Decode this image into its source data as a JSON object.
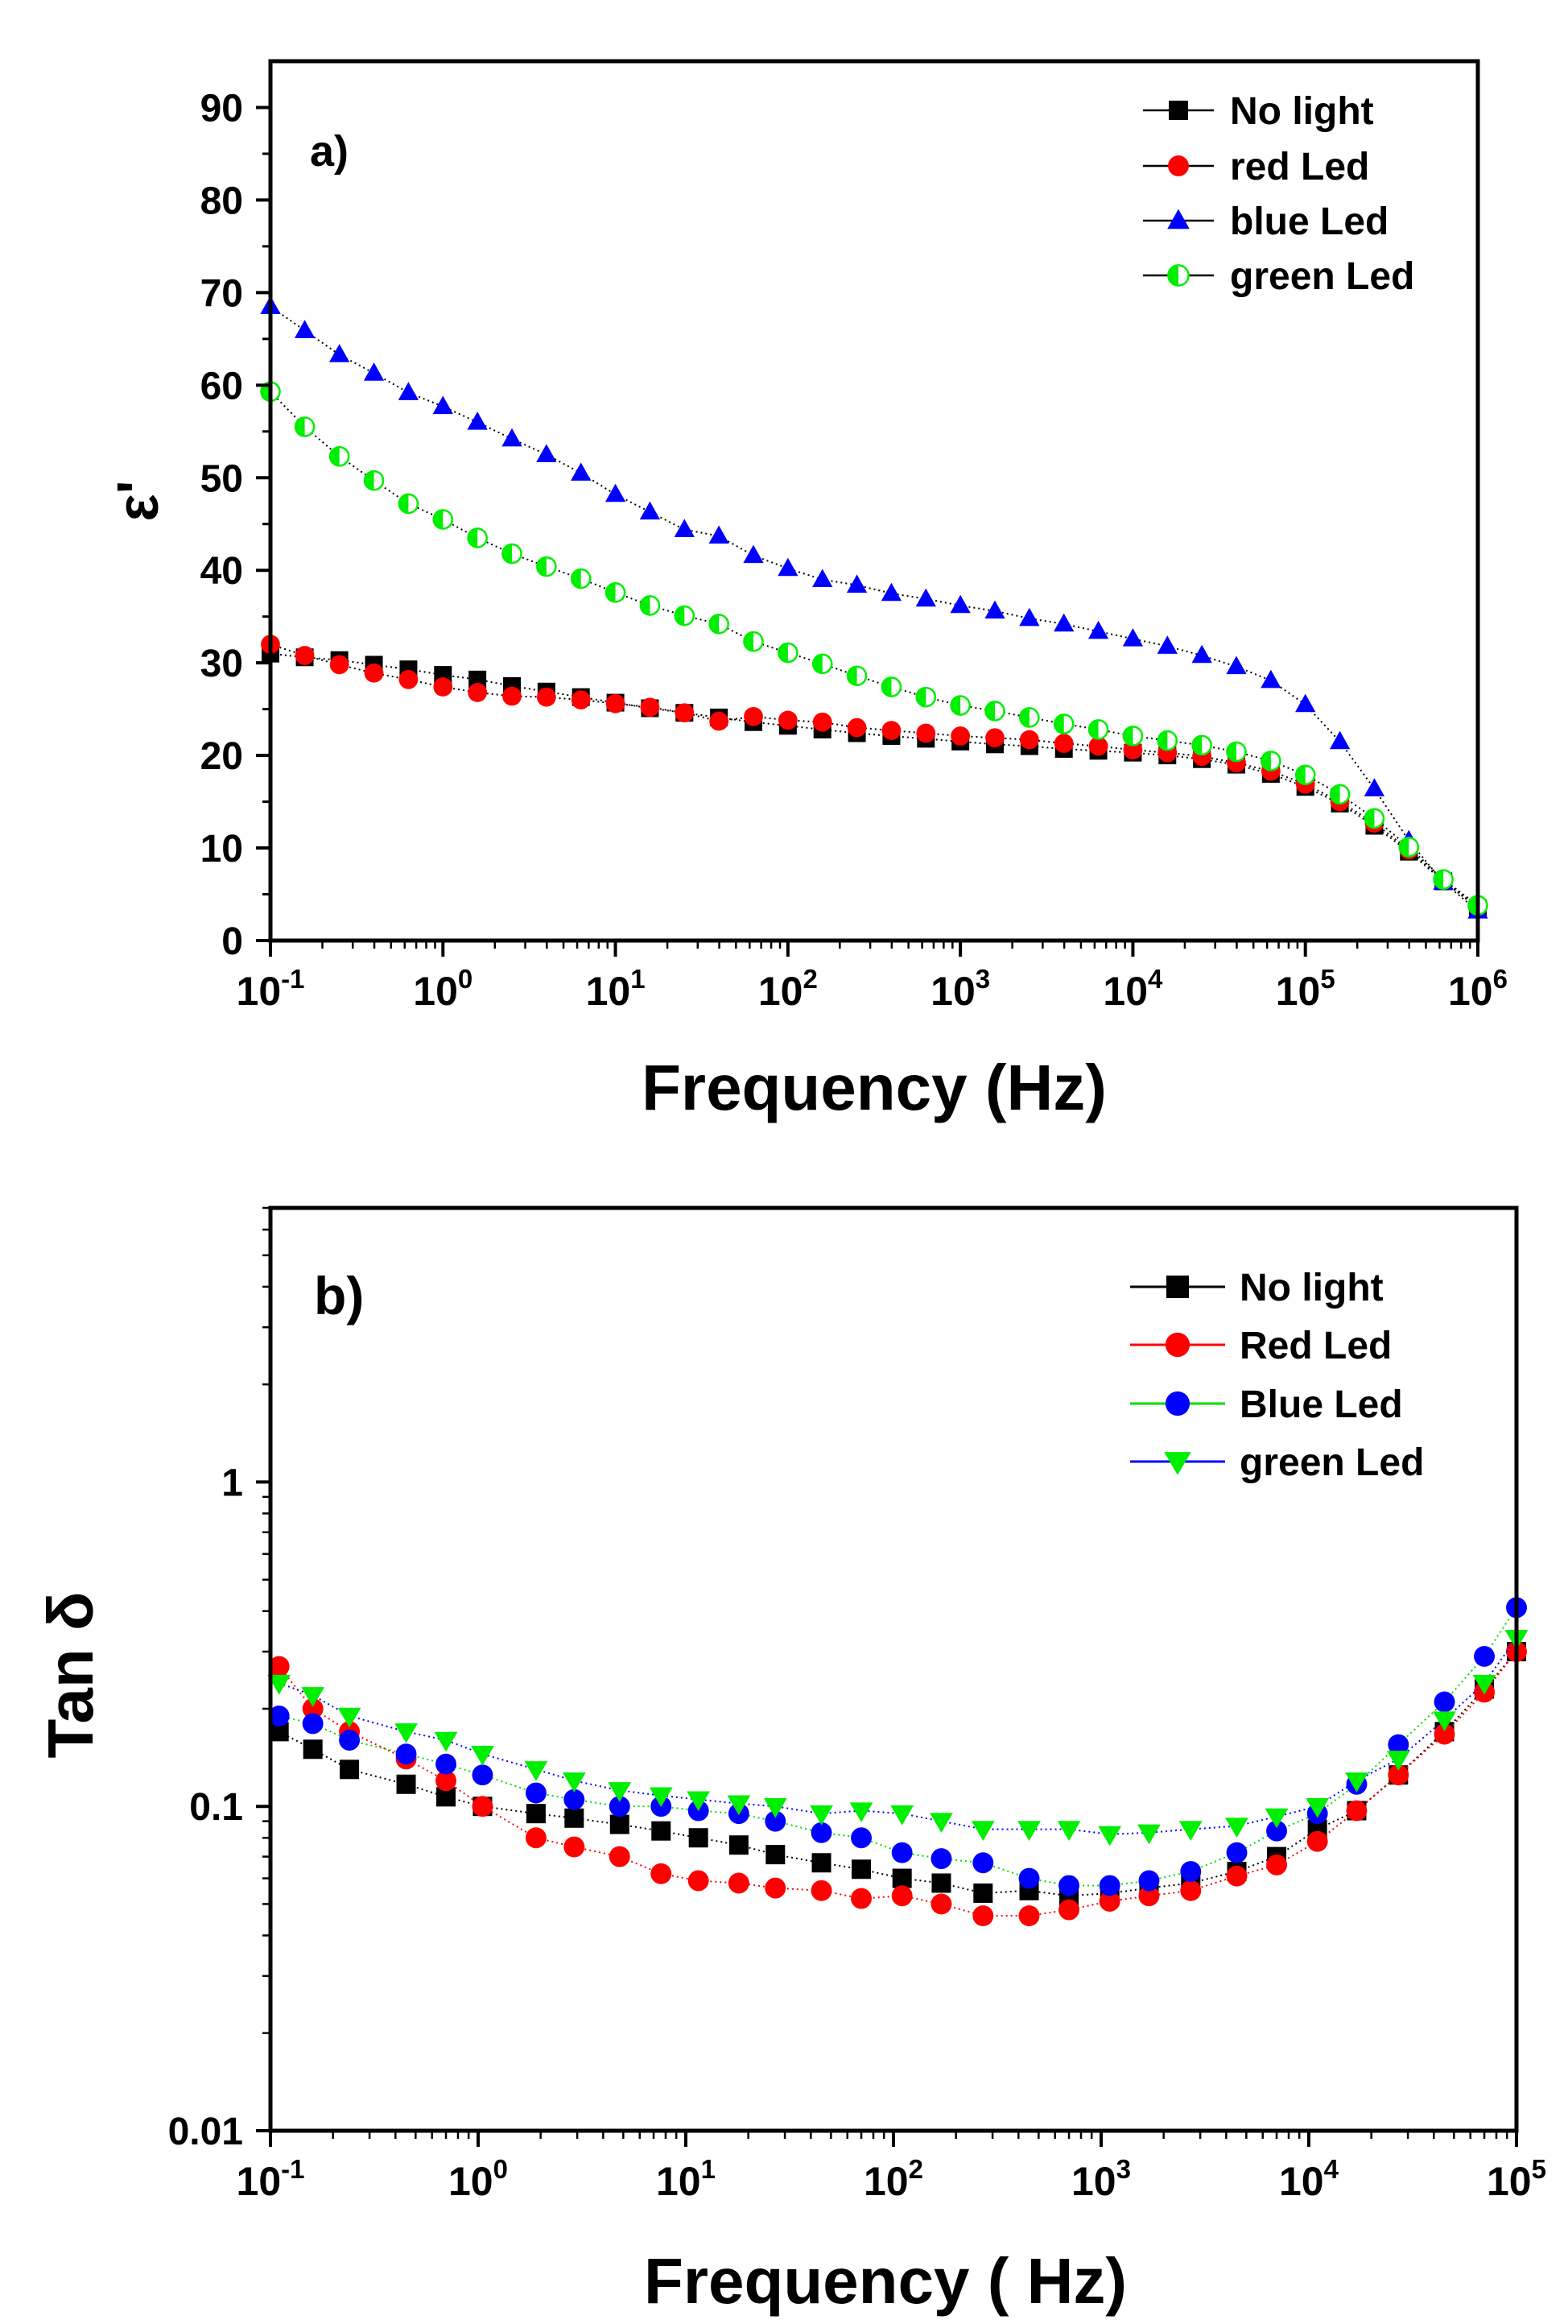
{
  "chart_data": [
    {
      "id": "panel_a",
      "type": "line",
      "panel_label": "a)",
      "xlabel": "Frequency (Hz)",
      "ylabel": "ε'",
      "xscale": "log",
      "yscale": "linear",
      "xlim": [
        0.1,
        1000000
      ],
      "ylim": [
        0,
        95
      ],
      "y_ticks": [
        0,
        10,
        20,
        30,
        40,
        50,
        60,
        70,
        80,
        90
      ],
      "x_decades": [
        -1,
        0,
        1,
        2,
        3,
        4,
        5,
        6
      ],
      "legend_position": "top-right",
      "series": [
        {
          "name": "No light",
          "color": "#000000",
          "marker": "square",
          "line_color": "#000000",
          "x": [
            0.1,
            0.158,
            0.251,
            0.398,
            0.631,
            1,
            1.585,
            2.512,
            3.981,
            6.31,
            10,
            15.85,
            25.12,
            39.81,
            63.1,
            100,
            158.5,
            251.2,
            398.1,
            631,
            1000,
            1585,
            2512,
            3981,
            6310,
            10000,
            15850,
            25120,
            39810,
            63100,
            100000,
            158500,
            251200,
            398100,
            631000,
            1000000
          ],
          "y": [
            31,
            30.6,
            30.3,
            29.8,
            29.3,
            28.7,
            28.2,
            27.5,
            26.9,
            26.3,
            25.7,
            25.1,
            24.6,
            24.1,
            23.6,
            23.2,
            22.8,
            22.4,
            22.1,
            21.8,
            21.5,
            21.2,
            21,
            20.7,
            20.5,
            20.3,
            20,
            19.6,
            19,
            18,
            16.6,
            14.8,
            12.4,
            9.6,
            6.4,
            3.5
          ]
        },
        {
          "name": "red Led",
          "color": "#ff0000",
          "marker": "circle",
          "line_color": "#000000",
          "x": [
            0.1,
            0.158,
            0.251,
            0.398,
            0.631,
            1,
            1.585,
            2.512,
            3.981,
            6.31,
            10,
            15.85,
            25.12,
            39.81,
            63.1,
            100,
            158.5,
            251.2,
            398.1,
            631,
            1000,
            1585,
            2512,
            3981,
            6310,
            10000,
            15850,
            25120,
            39810,
            63100,
            100000,
            158500,
            251200,
            398100,
            631000,
            1000000
          ],
          "y": [
            32,
            30.8,
            29.8,
            28.9,
            28.2,
            27.4,
            26.8,
            26.4,
            26.3,
            26,
            25.6,
            25.2,
            24.6,
            23.7,
            24.2,
            23.8,
            23.6,
            23,
            22.7,
            22.4,
            22.1,
            21.9,
            21.7,
            21.3,
            21,
            20.6,
            20.3,
            19.9,
            19.2,
            18.3,
            16.9,
            15,
            12.7,
            9.8,
            6.5,
            3.6
          ]
        },
        {
          "name": "blue Led",
          "color": "#0000ff",
          "marker": "triangle",
          "line_color": "#000000",
          "x": [
            0.1,
            0.158,
            0.251,
            0.398,
            0.631,
            1,
            1.585,
            2.512,
            3.981,
            6.31,
            10,
            15.85,
            25.12,
            39.81,
            63.1,
            100,
            158.5,
            251.2,
            398.1,
            631,
            1000,
            1585,
            2512,
            3981,
            6310,
            10000,
            15850,
            25120,
            39810,
            63100,
            100000,
            158500,
            251200,
            398100,
            631000,
            1000000
          ],
          "y": [
            68.5,
            65.9,
            63.3,
            61.3,
            59.2,
            57.7,
            56,
            54.2,
            52.5,
            50.5,
            48.2,
            46.3,
            44.4,
            43.7,
            41.6,
            40.2,
            39,
            38.4,
            37.5,
            36.9,
            36.2,
            35.6,
            34.8,
            34.2,
            33.4,
            32.6,
            31.8,
            30.8,
            29.6,
            28.1,
            25.5,
            21.5,
            16.4,
            10.8,
            6.3,
            3.2
          ]
        },
        {
          "name": "green Led",
          "color": "#00ee00",
          "marker": "half-circle",
          "line_color": "#000000",
          "x": [
            0.1,
            0.158,
            0.251,
            0.398,
            0.631,
            1,
            1.585,
            2.512,
            3.981,
            6.31,
            10,
            15.85,
            25.12,
            39.81,
            63.1,
            100,
            158.5,
            251.2,
            398.1,
            631,
            1000,
            1585,
            2512,
            3981,
            6310,
            10000,
            15850,
            25120,
            39810,
            63100,
            100000,
            158500,
            251200,
            398100,
            631000,
            1000000
          ],
          "y": [
            59.3,
            55.5,
            52.3,
            49.7,
            47.2,
            45.5,
            43.5,
            41.8,
            40.4,
            39.1,
            37.6,
            36.2,
            35.1,
            34.2,
            32.3,
            31.1,
            29.9,
            28.6,
            27.4,
            26.3,
            25.4,
            24.8,
            24.1,
            23.4,
            22.8,
            22.1,
            21.6,
            21.1,
            20.4,
            19.4,
            17.9,
            15.8,
            13.2,
            10.1,
            6.6,
            3.8
          ]
        }
      ]
    },
    {
      "id": "panel_b",
      "type": "line",
      "panel_label": "b)",
      "xlabel": "Frequency ( Hz)",
      "ylabel": "Tan δ",
      "xscale": "log",
      "yscale": "log",
      "xlim": [
        0.1,
        100000
      ],
      "ylim": [
        0.01,
        7
      ],
      "y_tick_labels": [
        "0.01",
        "0.1",
        "1"
      ],
      "y_tick_values": [
        0.01,
        0.1,
        1
      ],
      "x_decades": [
        -1,
        0,
        1,
        2,
        3,
        4,
        5
      ],
      "legend_position": "top-right",
      "series": [
        {
          "name": "No light",
          "color": "#000000",
          "marker": "square",
          "line_color": "#000000",
          "x": [
            0.11,
            0.16,
            0.24,
            0.45,
            0.7,
            1.05,
            1.9,
            2.9,
            4.8,
            7.6,
            11.5,
            18,
            27,
            45,
            70,
            110,
            170,
            270,
            450,
            700,
            1100,
            1700,
            2700,
            4500,
            7000,
            11000,
            17000,
            27000,
            45000,
            70000,
            100000
          ],
          "y": [
            0.17,
            0.15,
            0.13,
            0.117,
            0.107,
            0.1,
            0.095,
            0.092,
            0.088,
            0.084,
            0.08,
            0.076,
            0.071,
            0.067,
            0.064,
            0.06,
            0.058,
            0.054,
            0.055,
            0.053,
            0.054,
            0.056,
            0.058,
            0.063,
            0.07,
            0.085,
            0.097,
            0.125,
            0.17,
            0.23,
            0.3
          ]
        },
        {
          "name": "Red Led",
          "color": "#ff0000",
          "marker": "circle",
          "line_color": "#ff0000",
          "x": [
            0.11,
            0.16,
            0.24,
            0.45,
            0.7,
            1.05,
            1.9,
            2.9,
            4.8,
            7.6,
            11.5,
            18,
            27,
            45,
            70,
            110,
            170,
            270,
            450,
            700,
            1100,
            1700,
            2700,
            4500,
            7000,
            11000,
            17000,
            27000,
            45000,
            70000,
            100000
          ],
          "y": [
            0.27,
            0.2,
            0.17,
            0.14,
            0.12,
            0.1,
            0.08,
            0.075,
            0.07,
            0.062,
            0.059,
            0.058,
            0.056,
            0.055,
            0.052,
            0.053,
            0.05,
            0.046,
            0.046,
            0.048,
            0.051,
            0.053,
            0.055,
            0.061,
            0.066,
            0.078,
            0.097,
            0.125,
            0.167,
            0.225,
            0.3
          ]
        },
        {
          "name": "Blue Led",
          "color": "#0000ff",
          "marker": "circle",
          "line_color": "#00dd00",
          "x": [
            0.11,
            0.16,
            0.24,
            0.45,
            0.7,
            1.05,
            1.9,
            2.9,
            4.8,
            7.6,
            11.5,
            18,
            27,
            45,
            70,
            110,
            170,
            270,
            450,
            700,
            1100,
            1700,
            2700,
            4500,
            7000,
            11000,
            17000,
            27000,
            45000,
            70000,
            100000
          ],
          "y": [
            0.19,
            0.18,
            0.16,
            0.145,
            0.135,
            0.125,
            0.11,
            0.105,
            0.1,
            0.1,
            0.097,
            0.095,
            0.09,
            0.083,
            0.08,
            0.072,
            0.069,
            0.067,
            0.06,
            0.057,
            0.057,
            0.059,
            0.063,
            0.072,
            0.084,
            0.095,
            0.117,
            0.155,
            0.21,
            0.29,
            0.41
          ]
        },
        {
          "name": "green Led",
          "color": "#00ee00",
          "marker": "triangle-down",
          "line_color": "#0000ff",
          "x": [
            0.11,
            0.16,
            0.24,
            0.45,
            0.7,
            1.05,
            1.9,
            2.9,
            4.8,
            7.6,
            11.5,
            18,
            27,
            45,
            70,
            110,
            170,
            270,
            450,
            700,
            1100,
            1700,
            2700,
            4500,
            7000,
            11000,
            17000,
            27000,
            45000,
            70000,
            100000
          ],
          "y": [
            0.24,
            0.22,
            0.19,
            0.17,
            0.16,
            0.145,
            0.13,
            0.12,
            0.112,
            0.108,
            0.105,
            0.102,
            0.1,
            0.095,
            0.097,
            0.095,
            0.09,
            0.085,
            0.085,
            0.085,
            0.082,
            0.083,
            0.085,
            0.087,
            0.093,
            0.1,
            0.12,
            0.14,
            0.185,
            0.24,
            0.33
          ]
        }
      ]
    }
  ]
}
